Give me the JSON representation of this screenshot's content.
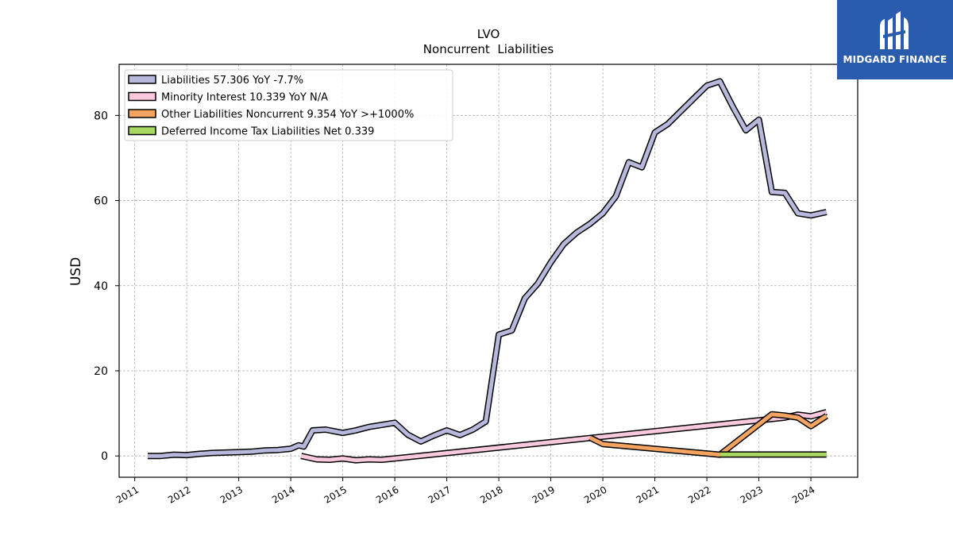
{
  "brand": {
    "name": "MIDGARD FINANCE",
    "bg_color": "#2a5cad"
  },
  "chart_data": {
    "type": "line",
    "title": "LVO",
    "subtitle": "Noncurrent  Liabilities",
    "ylabel": "USD",
    "xlim": [
      2010.7,
      2024.9
    ],
    "ylim": [
      -5,
      92
    ],
    "yticks": [
      0,
      20,
      40,
      60,
      80
    ],
    "xticks": [
      2011,
      2012,
      2013,
      2014,
      2015,
      2016,
      2017,
      2018,
      2019,
      2020,
      2021,
      2022,
      2023,
      2024
    ],
    "grid": true,
    "legend_position": "upper-left",
    "series": [
      {
        "name": "Liabilities  57.306 YoY -7.7%",
        "color": "#b8b8dc",
        "x": [
          2011.25,
          2011.5,
          2011.75,
          2012.0,
          2012.25,
          2012.5,
          2012.75,
          2013.0,
          2013.25,
          2013.5,
          2013.75,
          2014.0,
          2014.15,
          2014.25,
          2014.42,
          2014.67,
          2015.0,
          2015.25,
          2015.5,
          2015.75,
          2016.0,
          2016.25,
          2016.5,
          2016.75,
          2017.0,
          2017.25,
          2017.5,
          2017.75,
          2018.0,
          2018.25,
          2018.5,
          2018.75,
          2019.0,
          2019.25,
          2019.5,
          2019.75,
          2020.0,
          2020.25,
          2020.5,
          2020.75,
          2021.0,
          2021.25,
          2021.5,
          2021.75,
          2022.0,
          2022.25,
          2022.5,
          2022.75,
          2023.0,
          2023.25,
          2023.5,
          2023.75,
          2024.0,
          2024.3
        ],
        "values": [
          0.0,
          0.0,
          0.3,
          0.2,
          0.5,
          0.7,
          0.8,
          0.9,
          1.0,
          1.3,
          1.4,
          1.7,
          2.5,
          2.2,
          6.0,
          6.2,
          5.4,
          6.0,
          6.8,
          7.3,
          7.8,
          5.0,
          3.4,
          4.8,
          6.0,
          4.9,
          6.2,
          8.1,
          28.5,
          29.5,
          37.0,
          40.5,
          45.5,
          49.8,
          52.5,
          54.5,
          57.0,
          61.0,
          69.0,
          67.8,
          76.0,
          78.0,
          81.0,
          84.0,
          87.0,
          88.0,
          82.0,
          76.5,
          79.0,
          62.0,
          61.8,
          57.0,
          56.5,
          57.3
        ]
      },
      {
        "name": "Minority Interest  10.339 YoY N/A",
        "color": "#f8c8dc",
        "x": [
          2014.2,
          2014.5,
          2014.75,
          2015.0,
          2015.25,
          2015.5,
          2015.75,
          2016.0,
          2023.25,
          2023.5,
          2023.75,
          2024.0,
          2024.3
        ],
        "values": [
          0.0,
          -0.8,
          -0.9,
          -0.6,
          -1.0,
          -0.8,
          -0.9,
          -0.6,
          8.7,
          9.0,
          9.7,
          9.3,
          10.3
        ]
      },
      {
        "name": "Other Liabilities Noncurrent  9.354 YoY >+1000%",
        "color": "#f4a460",
        "x": [
          2019.75,
          2020.0,
          2022.25,
          2023.25,
          2023.5,
          2023.75,
          2024.0,
          2024.3
        ],
        "values": [
          4.3,
          2.8,
          0.3,
          9.8,
          9.5,
          9.0,
          7.0,
          9.4
        ]
      },
      {
        "name": "Deferred Income Tax Liabilities Net  0.339",
        "color": "#a8d860",
        "x": [
          2022.25,
          2024.3
        ],
        "values": [
          0.339,
          0.339
        ]
      }
    ]
  }
}
